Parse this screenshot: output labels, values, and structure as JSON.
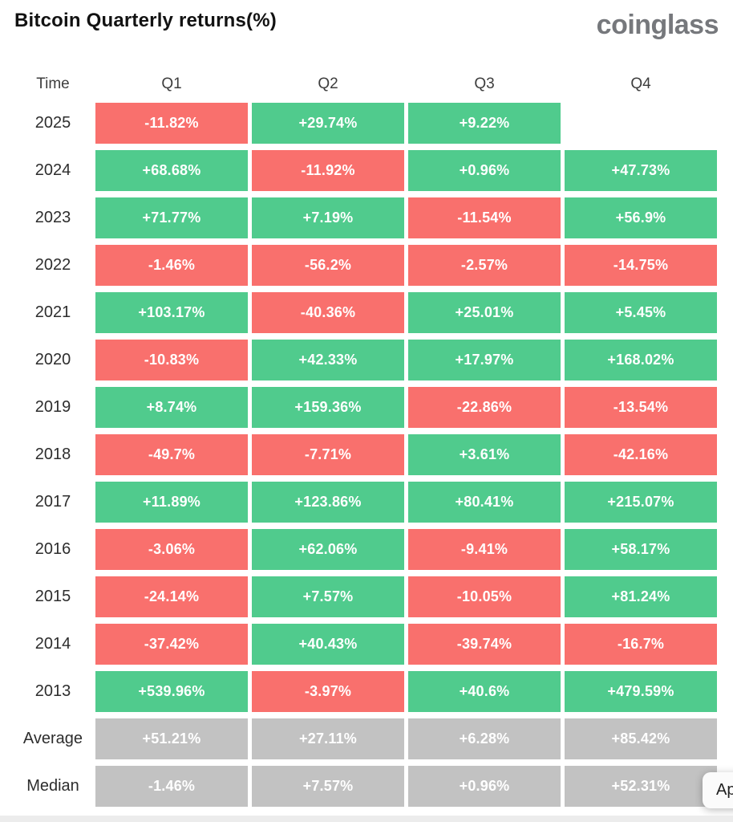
{
  "header": {
    "title": "Bitcoin Quarterly returns(%)",
    "logo": "coinglass"
  },
  "colors": {
    "positive": "#50CB8D",
    "negative": "#F9706D",
    "neutral": "#C2C2C2"
  },
  "overlay": {
    "button_label": "Ap"
  },
  "table": {
    "columns": [
      "Time",
      "Q1",
      "Q2",
      "Q3",
      "Q4"
    ],
    "rows": [
      {
        "label": "2025",
        "cells": [
          {
            "text": "-11.82%",
            "color": "neg"
          },
          {
            "text": "+29.74%",
            "color": "pos"
          },
          {
            "text": "+9.22%",
            "color": "pos"
          },
          null
        ]
      },
      {
        "label": "2024",
        "cells": [
          {
            "text": "+68.68%",
            "color": "pos"
          },
          {
            "text": "-11.92%",
            "color": "neg"
          },
          {
            "text": "+0.96%",
            "color": "pos"
          },
          {
            "text": "+47.73%",
            "color": "pos"
          }
        ]
      },
      {
        "label": "2023",
        "cells": [
          {
            "text": "+71.77%",
            "color": "pos"
          },
          {
            "text": "+7.19%",
            "color": "pos"
          },
          {
            "text": "-11.54%",
            "color": "neg"
          },
          {
            "text": "+56.9%",
            "color": "pos"
          }
        ]
      },
      {
        "label": "2022",
        "cells": [
          {
            "text": "-1.46%",
            "color": "neg"
          },
          {
            "text": "-56.2%",
            "color": "neg"
          },
          {
            "text": "-2.57%",
            "color": "neg"
          },
          {
            "text": "-14.75%",
            "color": "neg"
          }
        ]
      },
      {
        "label": "2021",
        "cells": [
          {
            "text": "+103.17%",
            "color": "pos"
          },
          {
            "text": "-40.36%",
            "color": "neg"
          },
          {
            "text": "+25.01%",
            "color": "pos"
          },
          {
            "text": "+5.45%",
            "color": "pos"
          }
        ]
      },
      {
        "label": "2020",
        "cells": [
          {
            "text": "-10.83%",
            "color": "neg"
          },
          {
            "text": "+42.33%",
            "color": "pos"
          },
          {
            "text": "+17.97%",
            "color": "pos"
          },
          {
            "text": "+168.02%",
            "color": "pos"
          }
        ]
      },
      {
        "label": "2019",
        "cells": [
          {
            "text": "+8.74%",
            "color": "pos"
          },
          {
            "text": "+159.36%",
            "color": "pos"
          },
          {
            "text": "-22.86%",
            "color": "neg"
          },
          {
            "text": "-13.54%",
            "color": "neg"
          }
        ]
      },
      {
        "label": "2018",
        "cells": [
          {
            "text": "-49.7%",
            "color": "neg"
          },
          {
            "text": "-7.71%",
            "color": "neg"
          },
          {
            "text": "+3.61%",
            "color": "pos"
          },
          {
            "text": "-42.16%",
            "color": "neg"
          }
        ]
      },
      {
        "label": "2017",
        "cells": [
          {
            "text": "+11.89%",
            "color": "pos"
          },
          {
            "text": "+123.86%",
            "color": "pos"
          },
          {
            "text": "+80.41%",
            "color": "pos"
          },
          {
            "text": "+215.07%",
            "color": "pos"
          }
        ]
      },
      {
        "label": "2016",
        "cells": [
          {
            "text": "-3.06%",
            "color": "neg"
          },
          {
            "text": "+62.06%",
            "color": "pos"
          },
          {
            "text": "-9.41%",
            "color": "neg"
          },
          {
            "text": "+58.17%",
            "color": "pos"
          }
        ]
      },
      {
        "label": "2015",
        "cells": [
          {
            "text": "-24.14%",
            "color": "neg"
          },
          {
            "text": "+7.57%",
            "color": "pos"
          },
          {
            "text": "-10.05%",
            "color": "neg"
          },
          {
            "text": "+81.24%",
            "color": "pos"
          }
        ]
      },
      {
        "label": "2014",
        "cells": [
          {
            "text": "-37.42%",
            "color": "neg"
          },
          {
            "text": "+40.43%",
            "color": "pos"
          },
          {
            "text": "-39.74%",
            "color": "neg"
          },
          {
            "text": "-16.7%",
            "color": "neg"
          }
        ]
      },
      {
        "label": "2013",
        "cells": [
          {
            "text": "+539.96%",
            "color": "pos"
          },
          {
            "text": "-3.97%",
            "color": "neg"
          },
          {
            "text": "+40.6%",
            "color": "pos"
          },
          {
            "text": "+479.59%",
            "color": "pos"
          }
        ]
      },
      {
        "label": "Average",
        "cells": [
          {
            "text": "+51.21%",
            "color": "neu"
          },
          {
            "text": "+27.11%",
            "color": "neu"
          },
          {
            "text": "+6.28%",
            "color": "neu"
          },
          {
            "text": "+85.42%",
            "color": "neu"
          }
        ]
      },
      {
        "label": "Median",
        "cells": [
          {
            "text": "-1.46%",
            "color": "neu"
          },
          {
            "text": "+7.57%",
            "color": "neu"
          },
          {
            "text": "+0.96%",
            "color": "neu"
          },
          {
            "text": "+52.31%",
            "color": "neu"
          }
        ]
      }
    ]
  },
  "chart_data": {
    "type": "heatmap",
    "title": "Bitcoin Quarterly returns(%)",
    "rows": [
      "2025",
      "2024",
      "2023",
      "2022",
      "2021",
      "2020",
      "2019",
      "2018",
      "2017",
      "2016",
      "2015",
      "2014",
      "2013",
      "Average",
      "Median"
    ],
    "columns": [
      "Q1",
      "Q2",
      "Q3",
      "Q4"
    ],
    "values_pct": [
      [
        -11.82,
        29.74,
        9.22,
        null
      ],
      [
        68.68,
        -11.92,
        0.96,
        47.73
      ],
      [
        71.77,
        7.19,
        -11.54,
        56.9
      ],
      [
        -1.46,
        -56.2,
        -2.57,
        -14.75
      ],
      [
        103.17,
        -40.36,
        25.01,
        5.45
      ],
      [
        -10.83,
        42.33,
        17.97,
        168.02
      ],
      [
        8.74,
        159.36,
        -22.86,
        -13.54
      ],
      [
        -49.7,
        -7.71,
        3.61,
        -42.16
      ],
      [
        11.89,
        123.86,
        80.41,
        215.07
      ],
      [
        -3.06,
        62.06,
        -9.41,
        58.17
      ],
      [
        -24.14,
        7.57,
        -10.05,
        81.24
      ],
      [
        -37.42,
        40.43,
        -39.74,
        -16.7
      ],
      [
        539.96,
        -3.97,
        40.6,
        479.59
      ],
      [
        51.21,
        27.11,
        6.28,
        85.42
      ],
      [
        -1.46,
        7.57,
        0.96,
        52.31
      ]
    ],
    "color_rule": "green = positive return, red = negative return, gray = Average/Median summary rows, blank = no data yet",
    "legend": "none",
    "grid": "cells separated by white gaps"
  }
}
